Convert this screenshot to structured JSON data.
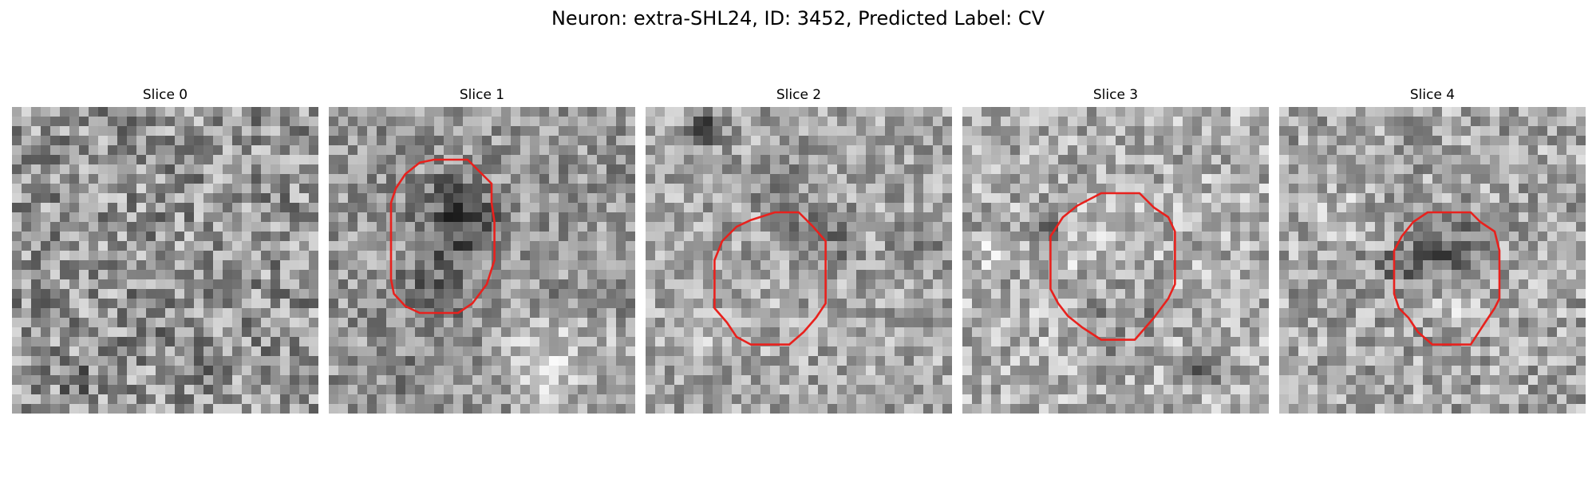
{
  "figure": {
    "title": "Neuron: extra-SHL24, ID: 3452, Predicted Label: CV"
  },
  "panels": [
    {
      "title": "Slice 0",
      "contour_color": "#e8211d",
      "has_contour": false
    },
    {
      "title": "Slice 1",
      "contour_color": "#e8211d",
      "has_contour": true
    },
    {
      "title": "Slice 2",
      "contour_color": "#e8211d",
      "has_contour": true
    },
    {
      "title": "Slice 3",
      "contour_color": "#e8211d",
      "has_contour": true
    },
    {
      "title": "Slice 4",
      "contour_color": "#e8211d",
      "has_contour": true
    }
  ]
}
